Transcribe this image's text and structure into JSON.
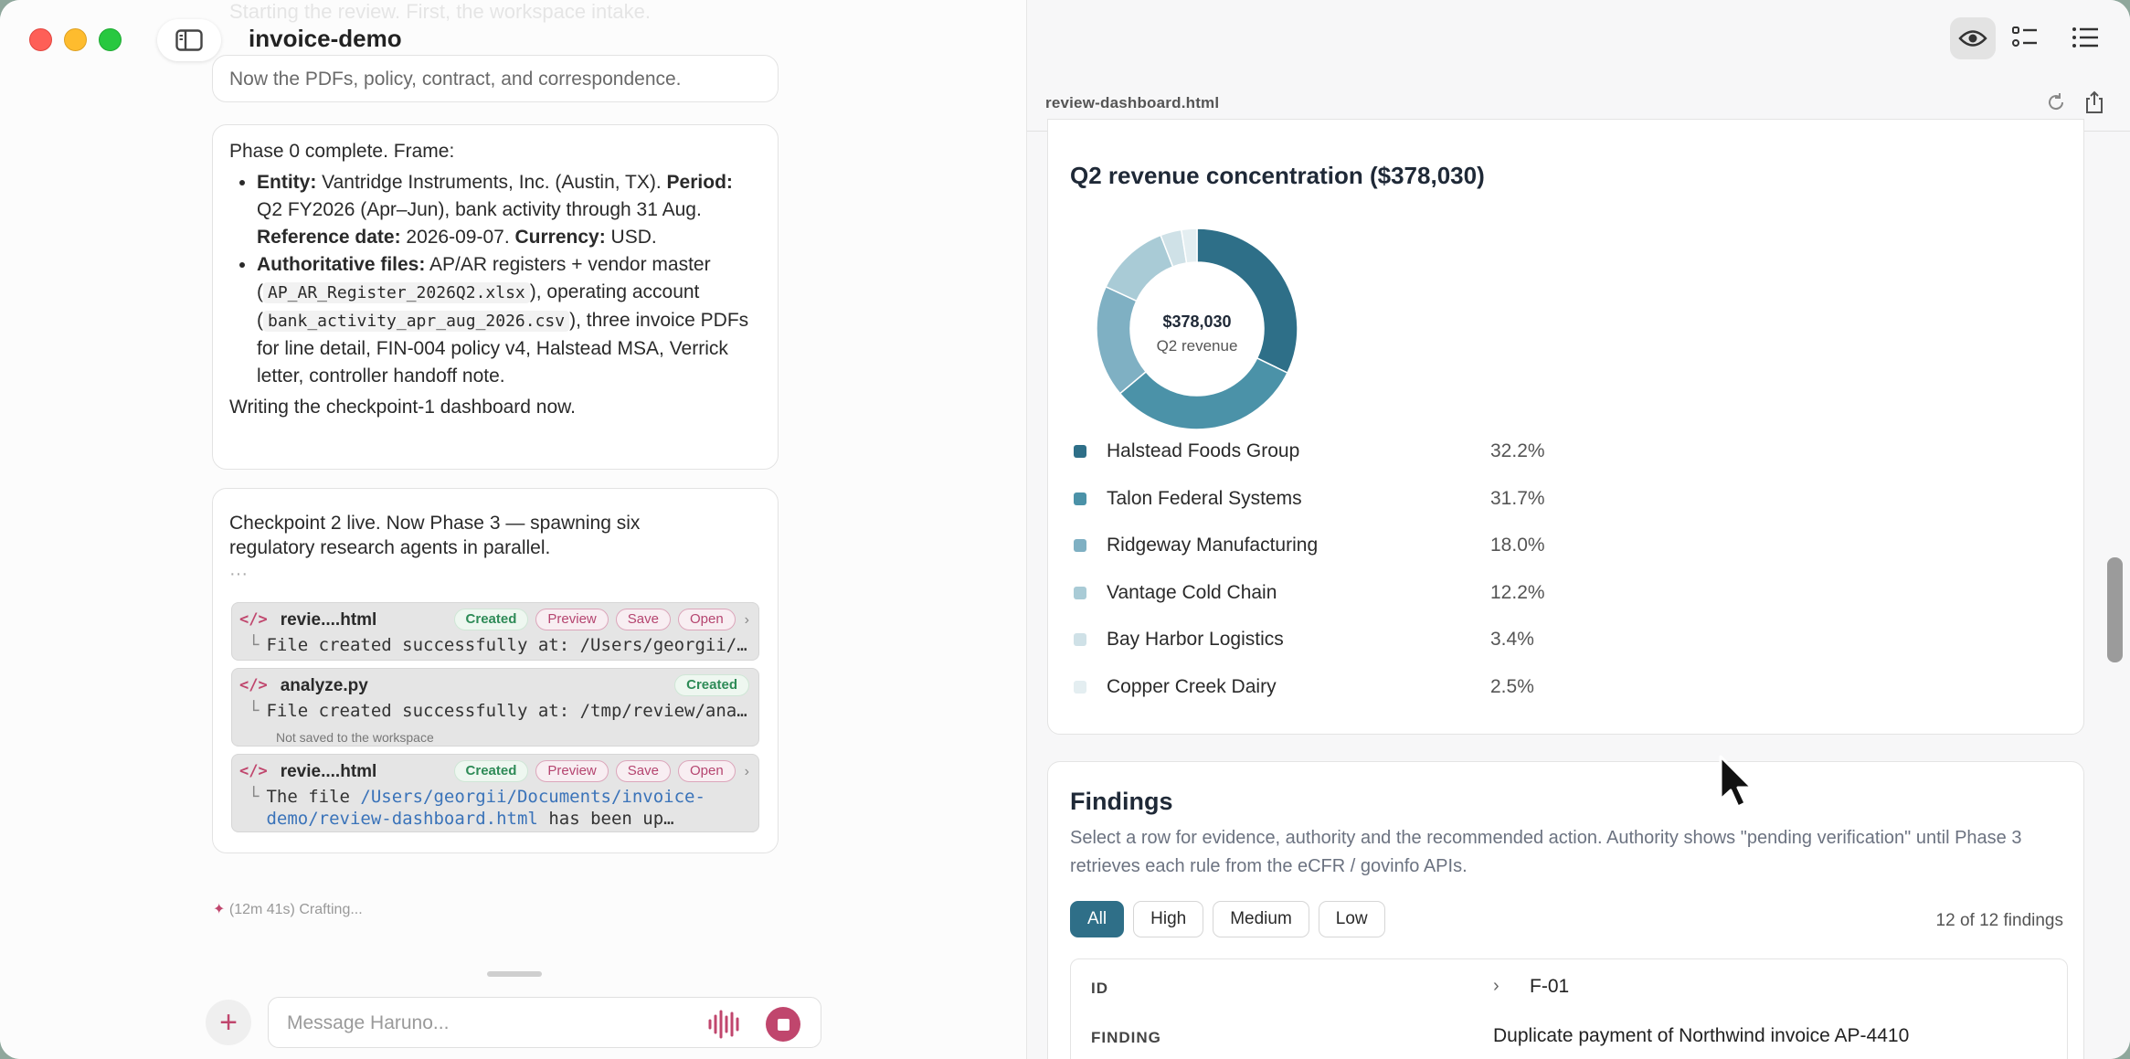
{
  "app": {
    "title": "invoice-demo",
    "faded_message": "Starting the review. First, the workspace intake."
  },
  "chat": {
    "msg1": "Now the PDFs, policy, contract, and correspondence.",
    "msg2": {
      "intro": "Phase 0 complete. Frame:",
      "b1_entity_label": "Entity:",
      "b1_entity": " Vantridge Instruments, Inc. (Austin, TX).",
      "b1_period_label": "Period:",
      "b1_period": " Q2 FY2026 (Apr–Jun), bank activity through 31 Aug.",
      "b1_ref_label": "Reference date:",
      "b1_ref": " 2026-09-07.",
      "b1_cur_label": "Currency:",
      "b1_cur": " USD.",
      "b2_label": "Authoritative files:",
      "b2_t1": " AP/AR registers + vendor master (",
      "b2_code1": "AP_AR_Register_2026Q2.xlsx",
      "b2_t2": "), operating account (",
      "b2_code2": "bank_activity_apr_aug_2026.csv",
      "b2_t3": "), three invoice PDFs for line detail, FIN-004 policy v4, Halstead MSA, Verrick letter, controller handoff note.",
      "outro": "Writing the checkpoint-1 dashboard now."
    },
    "msg3": {
      "text": "Checkpoint 2 live. Now Phase 3 — spawning six regulatory research agents in parallel.",
      "dots": "···",
      "tools": [
        {
          "icon": "</>",
          "name": "revie....html",
          "created": "Created",
          "preview": "Preview",
          "save": "Save",
          "open": "Open",
          "corner": "└",
          "output": "File created successfully at: /Users/georgii/Documents/invoice-demo/review-dashboard.html"
        },
        {
          "icon": "</>",
          "name": "analyze.py",
          "created": "Created",
          "corner": "└",
          "output": "File created successfully at: /tmp/review/analyze.py",
          "note": "Not saved to the workspace"
        },
        {
          "icon": "</>",
          "name": "revie....html",
          "created": "Created",
          "preview": "Preview",
          "save": "Save",
          "open": "Open",
          "corner": "└",
          "output_pre": "The file ",
          "output_link": "/Users/georgii/Documents/invoice-demo/review-dashboard.html",
          "output_post": " has been up…"
        }
      ]
    },
    "status": "(12m 41s) Crafting...",
    "input_placeholder": "Message Haruno..."
  },
  "preview": {
    "filename": "review-dashboard.html",
    "concentration": {
      "title": "Q2 revenue concentration ($378,030)",
      "center_value": "$378,030",
      "center_label": "Q2 revenue"
    },
    "findings": {
      "title": "Findings",
      "description": "Select a row for evidence, authority and the recommended action. Authority shows \"pending verification\" until Phase 3 retrieves each rule from the eCFR / govinfo APIs.",
      "filters": [
        "All",
        "High",
        "Medium",
        "Low"
      ],
      "count": "12 of 12 findings",
      "row_id_label": "ID",
      "row_id_value": "F-01",
      "row_finding_label": "FINDING",
      "row_finding_value": "Duplicate payment of Northwind invoice AP-4410"
    }
  },
  "chart_data": {
    "type": "pie",
    "title": "Q2 revenue concentration ($378,030)",
    "categories": [
      "Halstead Foods Group",
      "Talon Federal Systems",
      "Ridgeway Manufacturing",
      "Vantage Cold Chain",
      "Bay Harbor Logistics",
      "Copper Creek Dairy"
    ],
    "values": [
      32.2,
      31.7,
      18.0,
      12.2,
      3.4,
      2.5
    ],
    "labels": [
      "32.2%",
      "31.7%",
      "18.0%",
      "12.2%",
      "3.4%",
      "2.5%"
    ],
    "colors": [
      "#2e6f88",
      "#4b92a8",
      "#7fb0c3",
      "#a9cbd6",
      "#cfe1e7",
      "#e4eef1"
    ]
  }
}
